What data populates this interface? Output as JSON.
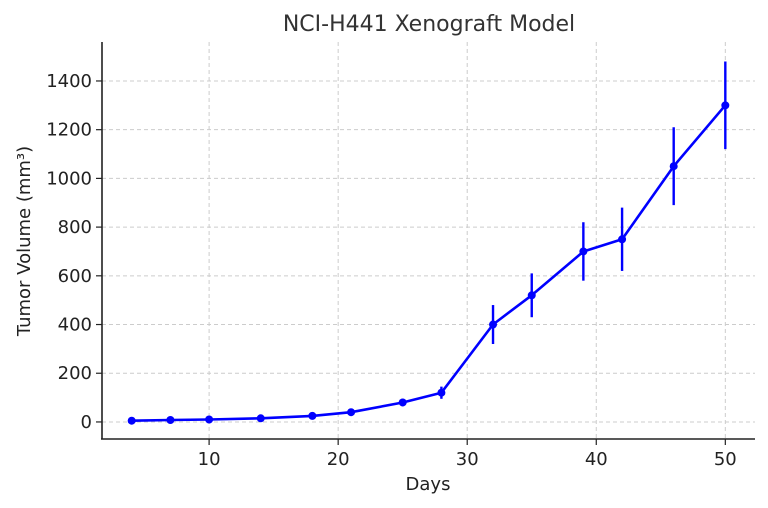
{
  "chart_data": {
    "type": "line",
    "title": "NCI-H441 Xenograft Model",
    "xlabel": "Days",
    "ylabel": "Tumor Volume (mm³)",
    "xlim": [
      1.7,
      52.3
    ],
    "ylim": [
      -70,
      1560
    ],
    "xticks": [
      10,
      20,
      30,
      40,
      50
    ],
    "yticks": [
      0,
      200,
      400,
      600,
      800,
      1000,
      1200,
      1400
    ],
    "grid": true,
    "legend": null,
    "color": "#0000ff",
    "x": [
      4,
      7,
      10,
      14,
      18,
      21,
      25,
      28,
      32,
      35,
      39,
      42,
      46,
      50
    ],
    "series": [
      {
        "name": "Tumor Volume",
        "values": [
          5,
          8,
          10,
          15,
          25,
          40,
          80,
          120,
          400,
          520,
          700,
          750,
          1050,
          1300
        ],
        "error": [
          1,
          1,
          2,
          3,
          5,
          8,
          15,
          25,
          80,
          90,
          120,
          130,
          160,
          180
        ]
      }
    ]
  }
}
